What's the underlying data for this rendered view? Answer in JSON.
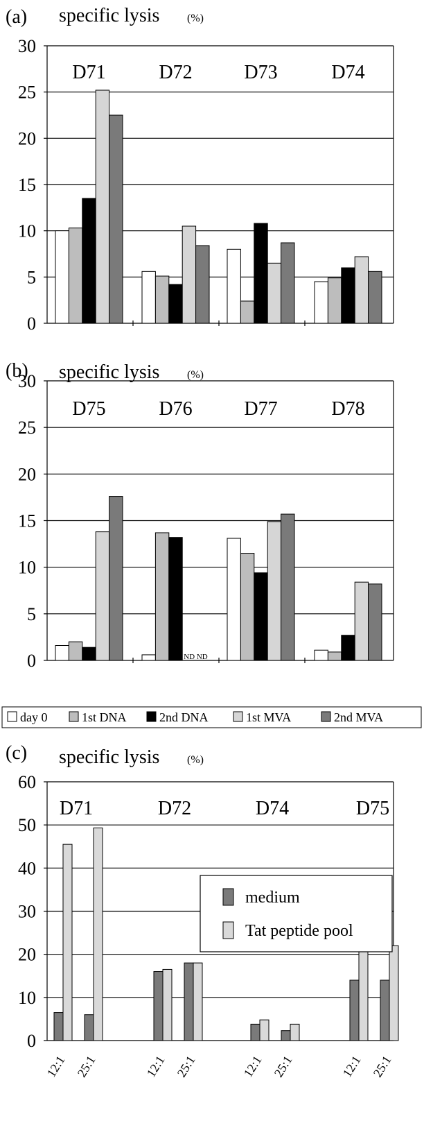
{
  "panels": [
    {
      "letter": "(a)",
      "ylabel": "specific lysis",
      "yunit": "(%)"
    },
    {
      "letter": "(b)",
      "ylabel": "specific lysis",
      "yunit": "(%)"
    },
    {
      "letter": "(c)",
      "ylabel": "specific lysis",
      "yunit": "(%)"
    }
  ],
  "legend_ab": [
    "day 0",
    "1st DNA",
    "2nd DNA",
    "1st MVA",
    "2nd MVA"
  ],
  "legend_c": [
    "medium",
    "Tat peptide pool"
  ],
  "colors": {
    "day 0": "#ffffff",
    "1st DNA": "#bdbdbd",
    "2nd DNA": "#000000",
    "1st MVA": "#d6d6d6",
    "2nd MVA": "#7a7a7a",
    "medium": "#7a7a7a",
    "Tat peptide pool": "#d9d9d9"
  },
  "chart_data": [
    {
      "type": "bar",
      "ylabel": "specific lysis (%)",
      "ylim": [
        0,
        30
      ],
      "yticks": [
        0,
        5,
        10,
        15,
        20,
        25,
        30
      ],
      "grid": true,
      "categories": [
        "D71",
        "D72",
        "D73",
        "D74"
      ],
      "series": [
        {
          "name": "day 0",
          "values": [
            10,
            5.6,
            8.0,
            4.5
          ]
        },
        {
          "name": "1st DNA",
          "values": [
            10.3,
            5.1,
            2.4,
            4.9
          ]
        },
        {
          "name": "2nd DNA",
          "values": [
            13.5,
            4.2,
            10.8,
            6.0
          ]
        },
        {
          "name": "1st MVA",
          "values": [
            25.2,
            10.5,
            6.5,
            7.2
          ]
        },
        {
          "name": "2nd MVA",
          "values": [
            22.5,
            8.4,
            8.7,
            5.6
          ]
        }
      ]
    },
    {
      "type": "bar",
      "ylabel": "specific lysis (%)",
      "ylim": [
        0,
        30
      ],
      "yticks": [
        0,
        5,
        10,
        15,
        20,
        25,
        30
      ],
      "grid": true,
      "categories": [
        "D75",
        "D76",
        "D77",
        "D78"
      ],
      "series": [
        {
          "name": "day 0",
          "values": [
            1.6,
            0.6,
            13.1,
            1.1
          ]
        },
        {
          "name": "1st DNA",
          "values": [
            2.0,
            13.7,
            11.5,
            0.9
          ]
        },
        {
          "name": "2nd DNA",
          "values": [
            1.4,
            13.2,
            9.4,
            2.7
          ]
        },
        {
          "name": "1st MVA",
          "values": [
            13.8,
            null,
            14.9,
            8.4
          ]
        },
        {
          "name": "2nd MVA",
          "values": [
            17.6,
            null,
            15.7,
            8.2
          ]
        }
      ],
      "annotations": [
        {
          "category": "D76",
          "text": "ND ND"
        }
      ]
    },
    {
      "type": "bar",
      "ylabel": "specific lysis (%)",
      "ylim": [
        0,
        60
      ],
      "yticks": [
        0,
        10,
        20,
        30,
        40,
        50,
        60
      ],
      "grid": true,
      "categories": [
        "D71",
        "D72",
        "D74",
        "D75"
      ],
      "ratios": [
        "12:1",
        "25:1"
      ],
      "series": [
        {
          "name": "medium",
          "values": [
            [
              6.5,
              6.0
            ],
            [
              16.0,
              18.0
            ],
            [
              3.8,
              2.3
            ],
            [
              14.0,
              14.0
            ]
          ]
        },
        {
          "name": "Tat peptide pool",
          "values": [
            [
              45.5,
              49.3
            ],
            [
              16.5,
              18.0
            ],
            [
              4.8,
              3.8
            ],
            [
              21.0,
              22.0
            ]
          ]
        }
      ],
      "legend": "top-right"
    }
  ]
}
